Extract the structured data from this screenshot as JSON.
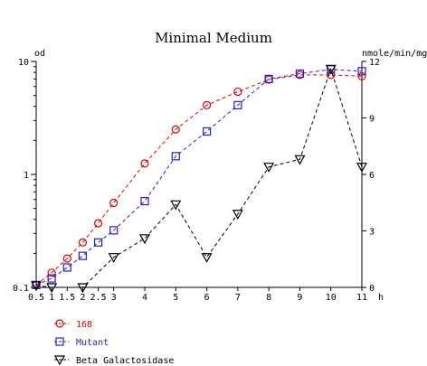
{
  "chart_data": {
    "type": "line",
    "title": "Minimal Medium",
    "xlabel": "h",
    "ylabel_left": "od",
    "ylabel_right": "nmole/min/mg",
    "x_ticks": [
      "0.5",
      "1",
      "1.5",
      "2",
      "2.5",
      "3",
      "4",
      "5",
      "6",
      "7",
      "8",
      "9",
      "10",
      "11"
    ],
    "x_tick_values": [
      0.5,
      1,
      1.5,
      2,
      2.5,
      3,
      4,
      5,
      6,
      7,
      8,
      9,
      10,
      11
    ],
    "xlim": [
      0.5,
      11
    ],
    "y_left_scale": "log",
    "y_left_ticks": [
      "0.1",
      "1",
      "10"
    ],
    "y_left_tick_values": [
      0.1,
      1,
      10
    ],
    "ylim_left": [
      0.1,
      10
    ],
    "y_right_ticks": [
      "0",
      "3",
      "6",
      "9",
      "12"
    ],
    "y_right_tick_values": [
      0,
      3,
      6,
      9,
      12
    ],
    "ylim_right": [
      0,
      12
    ],
    "grid": false,
    "legend_position": "bottom-left",
    "series": [
      {
        "name": "168",
        "axis": "left",
        "color": "#dd0000",
        "marker": "circle",
        "x": [
          0.5,
          1,
          1.5,
          2,
          2.5,
          3,
          4,
          5,
          6,
          7,
          8,
          9,
          10,
          11
        ],
        "values": [
          0.105,
          0.135,
          0.18,
          0.25,
          0.37,
          0.56,
          1.25,
          2.5,
          4.1,
          5.4,
          6.9,
          7.6,
          7.6,
          7.4
        ]
      },
      {
        "name": "Mutant",
        "axis": "left",
        "color": "#2222cc",
        "marker": "square",
        "x": [
          0.5,
          1,
          1.5,
          2,
          2.5,
          3,
          4,
          5,
          6,
          7,
          8,
          9,
          10,
          11
        ],
        "values": [
          0.105,
          0.12,
          0.15,
          0.19,
          0.25,
          0.32,
          0.58,
          1.45,
          2.4,
          4.1,
          7.0,
          7.8,
          8.5,
          8.2
        ]
      },
      {
        "name": "Beta Galactosidase",
        "axis": "right",
        "color": "#000000",
        "marker": "triangle-down",
        "x": [
          0.5,
          1,
          2,
          3,
          4,
          5,
          6,
          7,
          8,
          9,
          10,
          11
        ],
        "values": [
          0.1,
          0,
          0,
          1.6,
          2.6,
          4.4,
          1.6,
          3.9,
          6.4,
          6.8,
          11.6,
          6.4
        ]
      }
    ]
  }
}
